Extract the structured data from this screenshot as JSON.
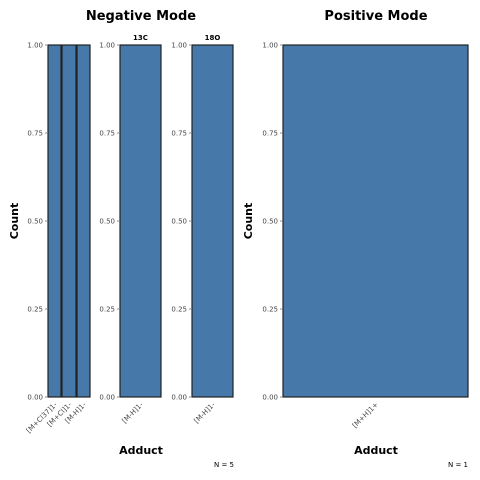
{
  "chart_data": [
    {
      "type": "bar",
      "title": "Negative Mode",
      "xlabel": "Adduct",
      "ylabel": "Count",
      "ylim": [
        0,
        1
      ],
      "yticks": [
        "0.00",
        "0.25",
        "0.50",
        "0.75",
        "1.00"
      ],
      "note": "N = 5",
      "panels": [
        {
          "strip": "",
          "categories": [
            "[M+Cl37]1-",
            "[M+Cl]1-",
            "[M-H]1-"
          ],
          "values": [
            1,
            1,
            1
          ]
        },
        {
          "strip": "13C",
          "categories": [
            "[M-H]1-"
          ],
          "values": [
            1
          ]
        },
        {
          "strip": "18O",
          "categories": [
            "[M-H]1-"
          ],
          "values": [
            1
          ]
        }
      ]
    },
    {
      "type": "bar",
      "title": "Positive Mode",
      "xlabel": "Adduct",
      "ylabel": "Count",
      "ylim": [
        0,
        1
      ],
      "yticks": [
        "0.00",
        "0.25",
        "0.50",
        "0.75",
        "1.00"
      ],
      "note": "N = 1",
      "panels": [
        {
          "strip": "",
          "categories": [
            "[M+H]1+"
          ],
          "values": [
            1
          ]
        }
      ]
    }
  ]
}
